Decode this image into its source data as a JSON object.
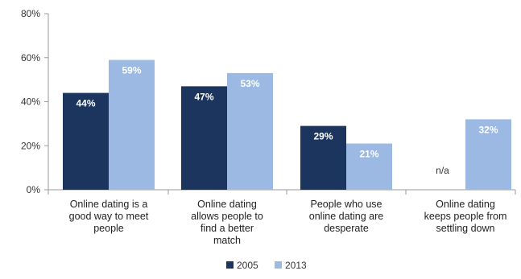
{
  "colors": {
    "series_2005": "#1b355e",
    "series_2013": "#9bb9e3",
    "axis": "#9a9a9a",
    "text": "#333333"
  },
  "legend": {
    "items": [
      "2005",
      "2013"
    ]
  },
  "chart_data": {
    "type": "bar",
    "title": "",
    "xlabel": "",
    "ylabel": "",
    "ylim": [
      0,
      80
    ],
    "y_ticks": [
      "0%",
      "20%",
      "40%",
      "60%",
      "80%"
    ],
    "grid": false,
    "legend_position": "bottom",
    "categories": [
      [
        "Online dating is a",
        "good way to meet",
        "people"
      ],
      [
        "Online dating",
        "allows people to",
        "find a better",
        "match"
      ],
      [
        "People who use",
        "online dating are",
        "desperate"
      ],
      [
        "Online dating",
        "keeps people from",
        "settling down"
      ]
    ],
    "series": [
      {
        "name": "2005",
        "values": [
          44,
          47,
          29,
          null
        ],
        "labels": [
          "44%",
          "47%",
          "29%",
          "n/a"
        ]
      },
      {
        "name": "2013",
        "values": [
          59,
          53,
          21,
          32
        ],
        "labels": [
          "59%",
          "53%",
          "21%",
          "32%"
        ]
      }
    ]
  }
}
